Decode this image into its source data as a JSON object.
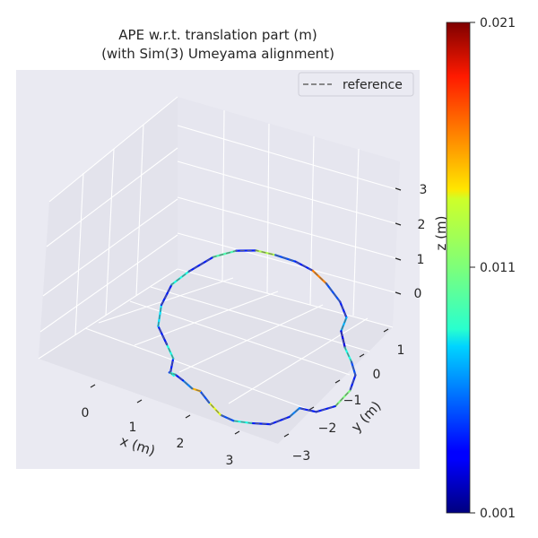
{
  "chart_data": {
    "type": "line",
    "projection": "3d",
    "title": [
      "APE w.r.t. translation part (m)",
      "(with Sim(3) Umeyama alignment)"
    ],
    "xlabel": "x (m)",
    "ylabel": "y (m)",
    "zlabel": "z (m)",
    "x_ticks": [
      "0",
      "1",
      "2",
      "3"
    ],
    "y_ticks": [
      "−3",
      "−2",
      "−1",
      "0",
      "1"
    ],
    "z_ticks": [
      "0",
      "1",
      "2",
      "3"
    ],
    "xlim": [
      -1,
      4
    ],
    "ylim": [
      -4,
      2
    ],
    "zlim": [
      -0.5,
      3.8
    ],
    "grid": true,
    "background": "#eaeaf2",
    "legend": {
      "position": "top-right",
      "entries": [
        {
          "label": "reference",
          "style": "dashed",
          "color": "#666666"
        }
      ]
    },
    "colorbar": {
      "label": "",
      "min": 0.001,
      "max": 0.021,
      "ticks": [
        "0.001",
        "0.011",
        "0.021"
      ],
      "colormap": "jet"
    },
    "series": [
      {
        "name": "reference",
        "style": "dashed",
        "color": "#666666",
        "x": [
          0.2,
          0.1,
          -0.2,
          -0.6,
          -0.8,
          -0.9,
          -0.85,
          -0.6,
          -0.3,
          0.0,
          0.3,
          0.7,
          1.1,
          1.5,
          1.9,
          2.2,
          2.3,
          2.6,
          2.9,
          3.2,
          3.3,
          3.2,
          2.95,
          2.7,
          2.7,
          2.45,
          2.15,
          1.85,
          1.6,
          1.3,
          1.0,
          0.8,
          0.55,
          0.3,
          0.15,
          0.2,
          0.3
        ],
        "y": [
          -2.8,
          -2.5,
          -2.2,
          -1.8,
          -1.3,
          -0.7,
          -0.1,
          0.4,
          0.75,
          1.0,
          1.2,
          1.25,
          1.2,
          1.0,
          0.8,
          0.5,
          0.1,
          -0.3,
          -0.6,
          -1.0,
          -1.4,
          -1.8,
          -2.1,
          -2.3,
          -2.7,
          -3.0,
          -3.2,
          -3.35,
          -3.4,
          -3.3,
          -3.1,
          -3.05,
          -2.95,
          -2.8,
          -2.75,
          -2.8,
          -2.85
        ],
        "z": [
          0.1,
          0.25,
          0.3,
          0.35,
          0.5,
          0.6,
          0.55,
          0.7,
          0.75,
          0.7,
          0.55,
          0.5,
          0.45,
          0.4,
          0.2,
          0.1,
          0.05,
          0.0,
          -0.05,
          0.0,
          -0.1,
          -0.3,
          -0.35,
          -0.2,
          -0.15,
          -0.25,
          -0.2,
          -0.15,
          -0.05,
          0.1,
          0.15,
          0.1,
          0.15,
          0.1,
          0.05,
          0.1,
          0.1
        ],
        "ape": [
          0.004,
          0.009,
          0.004,
          0.008,
          0.004,
          0.009,
          0.004,
          0.01,
          0.004,
          0.012,
          0.005,
          0.004,
          0.016,
          0.005,
          0.004,
          0.007,
          0.003,
          0.009,
          0.005,
          0.004,
          0.011,
          0.004,
          0.004,
          0.006,
          0.004,
          0.004,
          0.009,
          0.005,
          0.013,
          0.005,
          0.015,
          0.006,
          0.004,
          0.009,
          0.004,
          0.009,
          0.003
        ]
      }
    ]
  }
}
